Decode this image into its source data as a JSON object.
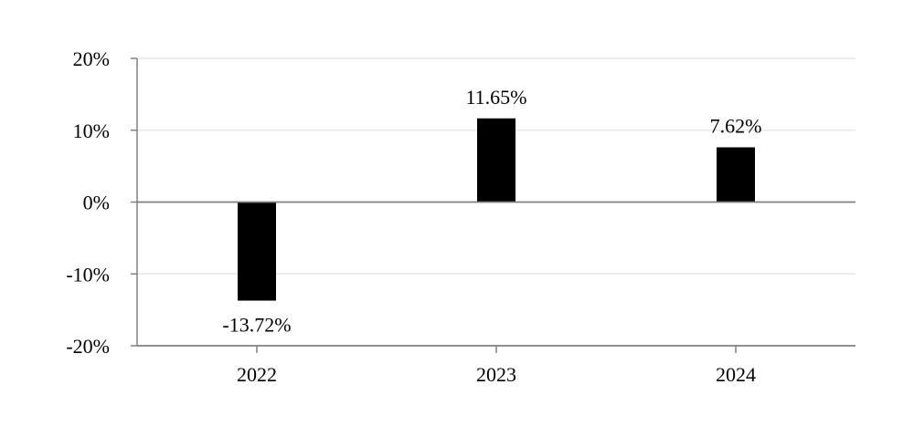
{
  "chart_data": {
    "type": "bar",
    "title": "",
    "xlabel": "",
    "ylabel": "",
    "categories": [
      "2022",
      "2023",
      "2024"
    ],
    "values": [
      -13.72,
      11.65,
      7.62
    ],
    "data_labels": [
      "-13.72%",
      "11.65%",
      "7.62%"
    ],
    "ylim": [
      -20,
      20
    ],
    "yticks": [
      20,
      10,
      0,
      -10,
      -20
    ],
    "ytick_labels": [
      "20%",
      "10%",
      "0%",
      "-10%",
      "-20%"
    ],
    "grid": true,
    "legend": "none",
    "colors": {
      "bar": "#000000",
      "grid": "#e6e6e6",
      "axis": "#808080",
      "zero_line": "#808080"
    }
  }
}
